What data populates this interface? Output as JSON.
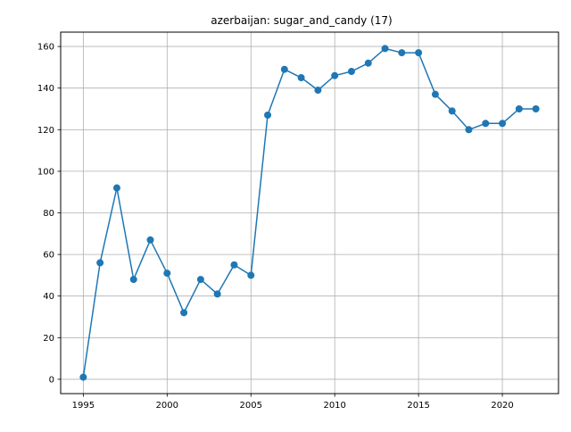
{
  "chart_data": {
    "type": "line",
    "title": "azerbaijan: sugar_and_candy (17)",
    "xlabel": "",
    "ylabel": "",
    "grid": true,
    "xlim": [
      1993.65,
      2023.35
    ],
    "ylim": [
      -6.9,
      166.9
    ],
    "x_ticks": [
      1995,
      2000,
      2005,
      2010,
      2015,
      2020
    ],
    "y_ticks": [
      0,
      20,
      40,
      60,
      80,
      100,
      120,
      140,
      160
    ],
    "series": [
      {
        "color": "#1f77b4",
        "marker": "circle",
        "points": [
          {
            "x": 1995,
            "y": 1
          },
          {
            "x": 1996,
            "y": 56
          },
          {
            "x": 1997,
            "y": 92
          },
          {
            "x": 1998,
            "y": 48
          },
          {
            "x": 1999,
            "y": 67
          },
          {
            "x": 2000,
            "y": 51
          },
          {
            "x": 2001,
            "y": 32
          },
          {
            "x": 2002,
            "y": 48
          },
          {
            "x": 2003,
            "y": 41
          },
          {
            "x": 2004,
            "y": 55
          },
          {
            "x": 2005,
            "y": 50
          },
          {
            "x": 2006,
            "y": 127
          },
          {
            "x": 2007,
            "y": 149
          },
          {
            "x": 2008,
            "y": 145
          },
          {
            "x": 2009,
            "y": 139
          },
          {
            "x": 2010,
            "y": 146
          },
          {
            "x": 2011,
            "y": 148
          },
          {
            "x": 2012,
            "y": 152
          },
          {
            "x": 2013,
            "y": 159
          },
          {
            "x": 2014,
            "y": 157
          },
          {
            "x": 2015,
            "y": 157
          },
          {
            "x": 2016,
            "y": 137
          },
          {
            "x": 2017,
            "y": 129
          },
          {
            "x": 2018,
            "y": 120
          },
          {
            "x": 2019,
            "y": 123
          },
          {
            "x": 2020,
            "y": 123
          },
          {
            "x": 2021,
            "y": 130
          },
          {
            "x": 2022,
            "y": 130
          }
        ]
      }
    ]
  }
}
